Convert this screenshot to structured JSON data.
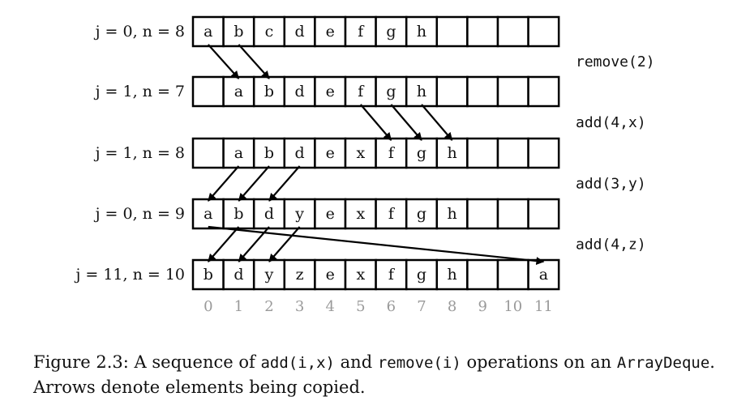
{
  "diagram": {
    "rows": [
      {
        "label": "j = 0, n = 8",
        "cells": [
          "a",
          "b",
          "c",
          "d",
          "e",
          "f",
          "g",
          "h",
          "",
          "",
          "",
          ""
        ]
      },
      {
        "label": "j = 1, n = 7",
        "cells": [
          "",
          "a",
          "b",
          "d",
          "e",
          "f",
          "g",
          "h",
          "",
          "",
          "",
          ""
        ]
      },
      {
        "label": "j = 1, n = 8",
        "cells": [
          "",
          "a",
          "b",
          "d",
          "e",
          "x",
          "f",
          "g",
          "h",
          "",
          "",
          ""
        ]
      },
      {
        "label": "j = 0, n = 9",
        "cells": [
          "a",
          "b",
          "d",
          "y",
          "e",
          "x",
          "f",
          "g",
          "h",
          "",
          "",
          ""
        ]
      },
      {
        "label": "j = 11, n = 10",
        "cells": [
          "b",
          "d",
          "y",
          "z",
          "e",
          "x",
          "f",
          "g",
          "h",
          "",
          "",
          "a"
        ]
      }
    ],
    "operations": [
      "remove(2)",
      "add(4,x)",
      "add(3,y)",
      "add(4,z)"
    ],
    "indices": [
      "0",
      "1",
      "2",
      "3",
      "4",
      "5",
      "6",
      "7",
      "8",
      "9",
      "10",
      "11"
    ],
    "arrows": [
      {
        "from_row": 0,
        "from_col": 0,
        "to_row": 1,
        "to_col": 1
      },
      {
        "from_row": 0,
        "from_col": 1,
        "to_row": 1,
        "to_col": 2
      },
      {
        "from_row": 1,
        "from_col": 5,
        "to_row": 2,
        "to_col": 6
      },
      {
        "from_row": 1,
        "from_col": 6,
        "to_row": 2,
        "to_col": 7
      },
      {
        "from_row": 1,
        "from_col": 7,
        "to_row": 2,
        "to_col": 8
      },
      {
        "from_row": 2,
        "from_col": 1,
        "to_row": 3,
        "to_col": 0
      },
      {
        "from_row": 2,
        "from_col": 2,
        "to_row": 3,
        "to_col": 1
      },
      {
        "from_row": 2,
        "from_col": 3,
        "to_row": 3,
        "to_col": 2
      },
      {
        "from_row": 3,
        "from_col": 0,
        "to_row": 4,
        "to_col": 11
      },
      {
        "from_row": 3,
        "from_col": 1,
        "to_row": 4,
        "to_col": 0
      },
      {
        "from_row": 3,
        "from_col": 2,
        "to_row": 4,
        "to_col": 1
      },
      {
        "from_row": 3,
        "from_col": 3,
        "to_row": 4,
        "to_col": 2
      }
    ]
  },
  "caption": {
    "prefix": "Figure 2.3: A sequence of ",
    "code1": "add(i,x)",
    "and_text": " and ",
    "code2": "remove(i)",
    "middle": " operations on an ",
    "code3": "ArrayDeque",
    "end": ".",
    "line2": "Arrows denote elements being copied."
  }
}
